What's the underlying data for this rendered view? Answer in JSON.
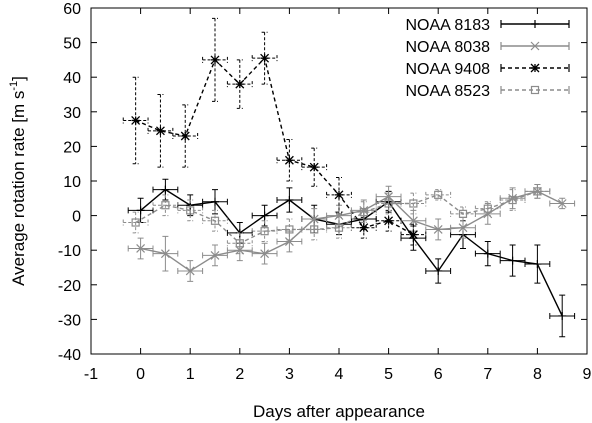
{
  "chart_data": {
    "type": "line",
    "xlabel": "Days after appearance",
    "ylabel_main": "Average rotation rate [m s",
    "ylabel_sup": "-1",
    "ylabel_close": "]",
    "xlim": [
      -1,
      9
    ],
    "ylim": [
      -40,
      60
    ],
    "xticks": [
      "-1",
      "0",
      "1",
      "2",
      "3",
      "4",
      "5",
      "6",
      "7",
      "8",
      "9"
    ],
    "yticks": [
      "-40",
      "-30",
      "-20",
      "-10",
      "0",
      "10",
      "20",
      "30",
      "40",
      "50",
      "60"
    ],
    "legend_position": "top-right",
    "series": [
      {
        "name": "NOAA 8183",
        "color": "#000000",
        "dash": "solid",
        "marker": "plus",
        "points": [
          {
            "x": 0,
            "y": 1.5,
            "xerr": 0.25,
            "yerr": 3.5
          },
          {
            "x": 0.5,
            "y": 7.5,
            "xerr": 0.25,
            "yerr": 3
          },
          {
            "x": 1,
            "y": 3,
            "xerr": 0.25,
            "yerr": 3
          },
          {
            "x": 1.5,
            "y": 4,
            "xerr": 0.25,
            "yerr": 3.5
          },
          {
            "x": 2,
            "y": -5,
            "xerr": 0.25,
            "yerr": 3
          },
          {
            "x": 2.5,
            "y": 0,
            "xerr": 0.25,
            "yerr": 3
          },
          {
            "x": 3,
            "y": 4.5,
            "xerr": 0.25,
            "yerr": 3.5
          },
          {
            "x": 3.5,
            "y": -1,
            "xerr": 0.25,
            "yerr": 4
          },
          {
            "x": 4,
            "y": -2.5,
            "xerr": 0.25,
            "yerr": 3
          },
          {
            "x": 4.5,
            "y": -1,
            "xerr": 0.25,
            "yerr": 3
          },
          {
            "x": 5,
            "y": 4,
            "xerr": 0.25,
            "yerr": 3
          },
          {
            "x": 5.5,
            "y": -6.5,
            "xerr": 0.25,
            "yerr": 3.5
          },
          {
            "x": 6,
            "y": -16,
            "xerr": 0.25,
            "yerr": 3.5
          },
          {
            "x": 6.5,
            "y": -5.5,
            "xerr": 0.25,
            "yerr": 4
          },
          {
            "x": 7,
            "y": -11,
            "xerr": 0.25,
            "yerr": 3.5
          },
          {
            "x": 7.5,
            "y": -13,
            "xerr": 0.25,
            "yerr": 4.5
          },
          {
            "x": 8,
            "y": -14,
            "xerr": 0.25,
            "yerr": 5.5
          },
          {
            "x": 8.5,
            "y": -29,
            "xerr": 0.25,
            "yerr": 6
          }
        ]
      },
      {
        "name": "NOAA 8038",
        "color": "#8c8c8c",
        "dash": "solid",
        "marker": "cross",
        "points": [
          {
            "x": 0,
            "y": -9.5,
            "xerr": 0.25,
            "yerr": 3
          },
          {
            "x": 0.5,
            "y": -11,
            "xerr": 0.25,
            "yerr": 5
          },
          {
            "x": 1,
            "y": -16,
            "xerr": 0.25,
            "yerr": 3
          },
          {
            "x": 1.5,
            "y": -11.5,
            "xerr": 0.25,
            "yerr": 3
          },
          {
            "x": 2,
            "y": -10,
            "xerr": 0.25,
            "yerr": 3
          },
          {
            "x": 2.5,
            "y": -11,
            "xerr": 0.25,
            "yerr": 3
          },
          {
            "x": 3,
            "y": -7.5,
            "xerr": 0.25,
            "yerr": 3
          },
          {
            "x": 3.5,
            "y": -1,
            "xerr": 0.25,
            "yerr": 3
          },
          {
            "x": 4,
            "y": 0,
            "xerr": 0.25,
            "yerr": 3
          },
          {
            "x": 4.5,
            "y": 1.5,
            "xerr": 0.25,
            "yerr": 3
          },
          {
            "x": 5,
            "y": 5.5,
            "xerr": 0.25,
            "yerr": 3
          },
          {
            "x": 5.5,
            "y": -1.5,
            "xerr": 0.25,
            "yerr": 3
          },
          {
            "x": 6,
            "y": -4,
            "xerr": 0.25,
            "yerr": 3
          },
          {
            "x": 6.5,
            "y": -3.5,
            "xerr": 0.25,
            "yerr": 3
          },
          {
            "x": 7,
            "y": 0.5,
            "xerr": 0.25,
            "yerr": 3
          },
          {
            "x": 7.5,
            "y": 5,
            "xerr": 0.25,
            "yerr": 3
          },
          {
            "x": 8,
            "y": 7,
            "xerr": 0.25,
            "yerr": 2
          },
          {
            "x": 8.5,
            "y": 3.5,
            "xerr": 0.25,
            "yerr": 1.5
          }
        ]
      },
      {
        "name": "NOAA 9408",
        "color": "#000000",
        "dash": "dashed",
        "marker": "star",
        "points": [
          {
            "x": -0.1,
            "y": 27.5,
            "xerr": 0.25,
            "yerr": 12.5
          },
          {
            "x": 0.4,
            "y": 24.5,
            "xerr": 0.25,
            "yerr": 10.5
          },
          {
            "x": 0.9,
            "y": 23,
            "xerr": 0.25,
            "yerr": 9
          },
          {
            "x": 1.5,
            "y": 45,
            "xerr": 0.25,
            "yerr": 12
          },
          {
            "x": 2,
            "y": 38,
            "xerr": 0.25,
            "yerr": 7
          },
          {
            "x": 2.5,
            "y": 45.5,
            "xerr": 0.25,
            "yerr": 7.5
          },
          {
            "x": 3,
            "y": 16,
            "xerr": 0.25,
            "yerr": 6
          },
          {
            "x": 3.5,
            "y": 14,
            "xerr": 0.25,
            "yerr": 5.5
          },
          {
            "x": 4,
            "y": 6,
            "xerr": 0.25,
            "yerr": 5
          },
          {
            "x": 4.5,
            "y": -3.5,
            "xerr": 0.25,
            "yerr": 3
          },
          {
            "x": 5,
            "y": -1.5,
            "xerr": 0.25,
            "yerr": 3
          },
          {
            "x": 5.5,
            "y": -5.5,
            "xerr": 0.25,
            "yerr": 3
          }
        ]
      },
      {
        "name": "NOAA 8523",
        "color": "#8c8c8c",
        "dash": "dashed",
        "marker": "square",
        "points": [
          {
            "x": -0.1,
            "y": -2,
            "xerr": 0.25,
            "yerr": 3
          },
          {
            "x": 0.5,
            "y": 3,
            "xerr": 0.25,
            "yerr": 3
          },
          {
            "x": 1,
            "y": 1.5,
            "xerr": 0.25,
            "yerr": 3
          },
          {
            "x": 1.5,
            "y": -1.5,
            "xerr": 0.25,
            "yerr": 3
          },
          {
            "x": 2,
            "y": -8,
            "xerr": 0.25,
            "yerr": 3
          },
          {
            "x": 2.5,
            "y": -4.5,
            "xerr": 0.25,
            "yerr": 3
          },
          {
            "x": 3,
            "y": -4,
            "xerr": 0.25,
            "yerr": 3
          },
          {
            "x": 3.5,
            "y": -4,
            "xerr": 0.25,
            "yerr": 3
          },
          {
            "x": 4,
            "y": -3.5,
            "xerr": 0.25,
            "yerr": 3
          },
          {
            "x": 4.5,
            "y": 1,
            "xerr": 0.25,
            "yerr": 3
          },
          {
            "x": 5,
            "y": 3.5,
            "xerr": 0.25,
            "yerr": 3
          },
          {
            "x": 5.5,
            "y": 3.5,
            "xerr": 0.25,
            "yerr": 3
          },
          {
            "x": 6,
            "y": 6,
            "xerr": 0.25,
            "yerr": 1.5
          },
          {
            "x": 6.5,
            "y": 0.5,
            "xerr": 0.25,
            "yerr": 2
          },
          {
            "x": 7,
            "y": 2,
            "xerr": 0.25,
            "yerr": 2
          },
          {
            "x": 7.5,
            "y": 4.5,
            "xerr": 0.25,
            "yerr": 3
          },
          {
            "x": 8,
            "y": 7,
            "xerr": 0.25,
            "yerr": 2
          }
        ]
      }
    ]
  }
}
